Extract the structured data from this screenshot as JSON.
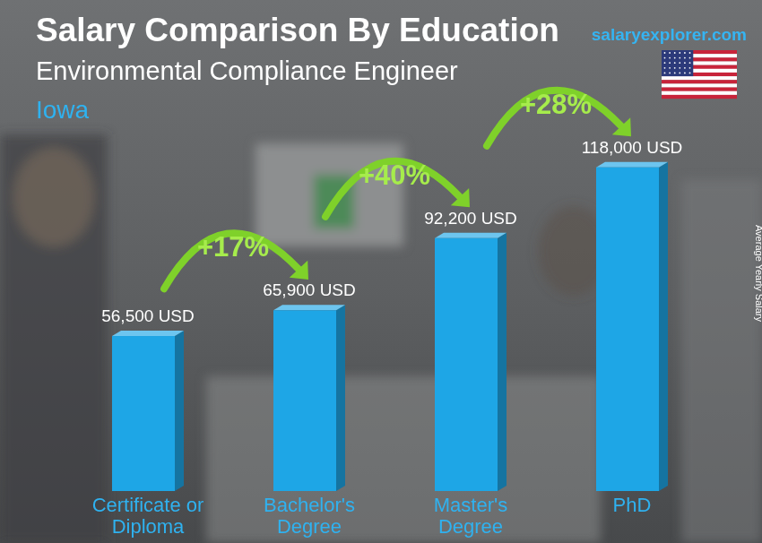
{
  "chart_data": {
    "type": "bar",
    "title": "Salary Comparison By Education",
    "subtitle": "Environmental Compliance Engineer",
    "location": "Iowa",
    "brand": "salaryexplorer.com",
    "y_label": "Average Yearly Salary",
    "categories": [
      "Certificate or Diploma",
      "Bachelor's Degree",
      "Master's Degree",
      "PhD"
    ],
    "values": [
      56500,
      65900,
      92200,
      118000
    ],
    "value_labels": [
      "56,500 USD",
      "65,900 USD",
      "92,200 USD",
      "118,000 USD"
    ],
    "annotations": [
      "+17%",
      "+40%",
      "+28%"
    ],
    "color": "#1ea6e6",
    "ylim": [
      0,
      130000
    ],
    "tick_labels": false,
    "data_labels": true,
    "grid": false
  }
}
